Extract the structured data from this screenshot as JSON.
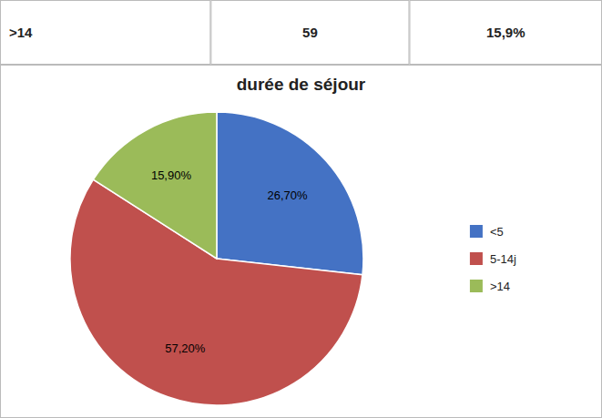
{
  "chart_data": {
    "type": "pie",
    "title": "durée de séjour",
    "categories": [
      "<5",
      "5-14j",
      ">14"
    ],
    "values": [
      26.7,
      57.2,
      15.9
    ],
    "value_labels": [
      "26,70%",
      "57,20%",
      "15,90%"
    ],
    "colors": [
      "#4472C4",
      "#C0504D",
      "#9BBB59"
    ],
    "data_labels": true,
    "legend": "right",
    "annotations": [
      ">14",
      "59",
      "15,9%"
    ]
  }
}
